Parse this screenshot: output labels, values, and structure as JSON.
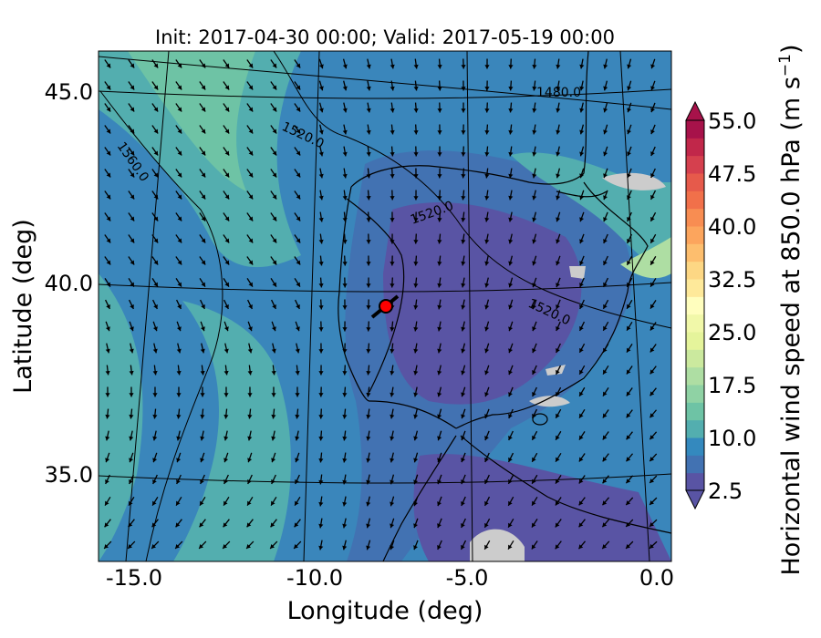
{
  "chart_data": {
    "type": "heatmap",
    "title": "Init: 2017-04-30 00:00; Valid: 2017-05-19 00:00",
    "xlabel": "Longitude (deg)",
    "ylabel": "Latitude (deg)",
    "xlim": [
      -16,
      0.3
    ],
    "ylim": [
      32.8,
      46
    ],
    "x_ticks": [
      "-15.0",
      "-10.0",
      "-5.0",
      "0.0"
    ],
    "y_ticks": [
      "45.0",
      "40.0",
      "35.0"
    ],
    "colorbar": {
      "label": "Horizontal wind speed at 850.0 hPa (m s",
      "label_exponent": "−1",
      "label_end": ")",
      "min": 2.5,
      "max": 55.0,
      "step": 2.5,
      "ticks": [
        "55.0",
        "47.5",
        "40.0",
        "32.5",
        "25.0",
        "17.5",
        "10.0",
        "2.5"
      ],
      "extend": "both",
      "colors": [
        "#5954a4",
        "#4272b2",
        "#3489be",
        "#53aeaf",
        "#6ec3a5",
        "#8fd2a4",
        "#aedea3",
        "#cbe99e",
        "#e5f49b",
        "#f1f8a9",
        "#fffebe",
        "#fee99a",
        "#fdd784",
        "#fdbe6e",
        "#fca55d",
        "#f88d52",
        "#f1704a",
        "#e65a4b",
        "#d5404e",
        "#c1274a",
        "#a7124a"
      ]
    },
    "contour_labels": [
      "1480.0",
      "1520.0",
      "1520.0",
      "1520.0",
      "1560.0"
    ],
    "marker": {
      "lon": -7.6,
      "lat": 39.3,
      "color": "#ff0000"
    }
  }
}
